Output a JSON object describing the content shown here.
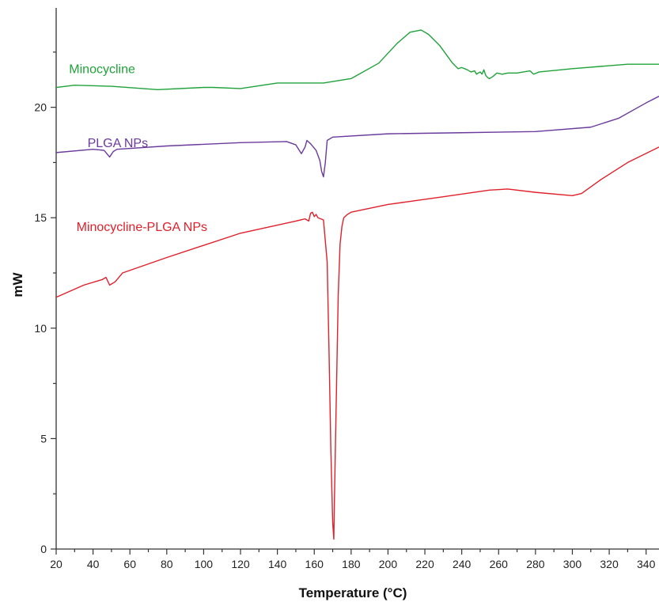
{
  "chart_data": {
    "type": "line",
    "title": "",
    "xlabel": "Temperature (°C)",
    "ylabel": "mW",
    "xlim": [
      20,
      347
    ],
    "ylim": [
      0,
      24.5
    ],
    "xticks": [
      20,
      40,
      60,
      80,
      100,
      120,
      140,
      160,
      180,
      200,
      220,
      240,
      260,
      280,
      300,
      320,
      340
    ],
    "yticks": [
      0,
      5,
      10,
      15,
      20
    ],
    "minor_x_step": 10,
    "minor_y_step": 2.5,
    "grid": false,
    "legend": "inline labels",
    "series": [
      {
        "name": "Minocycline",
        "color": "#1fa23a",
        "label_at": [
          27,
          21.55
        ],
        "x": [
          20,
          30,
          50,
          75,
          100,
          105,
          120,
          140,
          150,
          165,
          180,
          195,
          205,
          212,
          218,
          222,
          228,
          235,
          238,
          240,
          243,
          245,
          247,
          248,
          250,
          251,
          252,
          253,
          254,
          255,
          257,
          259,
          262,
          265,
          270,
          277,
          279,
          282,
          300,
          330,
          347
        ],
        "y": [
          20.9,
          21.0,
          20.95,
          20.8,
          20.9,
          20.9,
          20.85,
          21.1,
          21.1,
          21.1,
          21.3,
          22.0,
          22.9,
          23.4,
          23.5,
          23.3,
          22.8,
          22.0,
          21.75,
          21.8,
          21.7,
          21.6,
          21.65,
          21.5,
          21.6,
          21.5,
          21.7,
          21.45,
          21.35,
          21.3,
          21.4,
          21.55,
          21.5,
          21.55,
          21.55,
          21.65,
          21.5,
          21.6,
          21.75,
          21.95,
          21.95
        ]
      },
      {
        "name": "PLGA NPs",
        "color": "#6a3a9c",
        "label_at": [
          37,
          18.2
        ],
        "x": [
          20,
          40,
          46,
          49,
          51,
          53,
          80,
          120,
          145,
          150,
          153,
          155,
          156,
          158,
          161,
          163,
          164,
          165,
          166,
          167,
          170,
          200,
          240,
          280,
          310,
          325,
          340,
          347
        ],
        "y": [
          17.95,
          18.1,
          18.05,
          17.75,
          18.0,
          18.1,
          18.25,
          18.4,
          18.45,
          18.3,
          17.9,
          18.2,
          18.5,
          18.35,
          18.05,
          17.6,
          17.1,
          16.85,
          17.5,
          18.5,
          18.65,
          18.8,
          18.85,
          18.9,
          19.1,
          19.5,
          20.2,
          20.5
        ]
      },
      {
        "name": "Minocycline-PLGA NPs",
        "color": "#e0202a",
        "label_at": [
          31,
          14.4
        ],
        "x": [
          20,
          35,
          45,
          47,
          49,
          52,
          56,
          80,
          120,
          150,
          155,
          157,
          158,
          159,
          160,
          161,
          162,
          165,
          167,
          168,
          169,
          170,
          170.6,
          171,
          172,
          173,
          174,
          175,
          176,
          178,
          180,
          200,
          230,
          255,
          265,
          280,
          300,
          305,
          315,
          330,
          347
        ],
        "y": [
          11.4,
          11.95,
          12.2,
          12.3,
          11.95,
          12.1,
          12.5,
          13.2,
          14.3,
          14.85,
          14.95,
          14.85,
          15.2,
          15.25,
          15.05,
          15.15,
          15.0,
          14.9,
          13.0,
          9.0,
          4.5,
          1.2,
          0.45,
          2.5,
          7.0,
          11.5,
          13.8,
          14.6,
          15.0,
          15.15,
          15.25,
          15.6,
          15.95,
          16.25,
          16.3,
          16.15,
          16.0,
          16.1,
          16.7,
          17.5,
          18.2
        ]
      }
    ]
  }
}
